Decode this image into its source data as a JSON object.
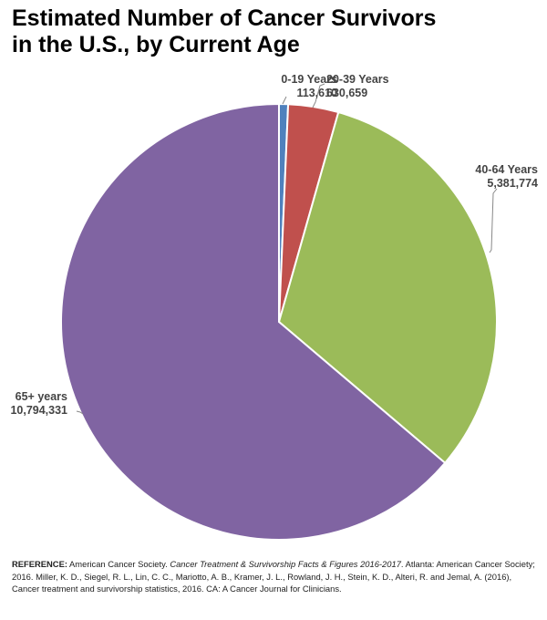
{
  "page": {
    "title_line1": "Estimated Number of Cancer Survivors",
    "title_line2": "in the U.S., by Current Age"
  },
  "chart_data": {
    "type": "pie",
    "title": "Estimated Number of Cancer Survivors in the U.S., by Current Age",
    "slices": [
      {
        "label": "0-19 Years",
        "value": 113610,
        "value_label": "113,610",
        "color": "#4f81bd"
      },
      {
        "label": "20-39 Years",
        "value": 630659,
        "value_label": "630,659",
        "color": "#c0504d"
      },
      {
        "label": "40-64 Years",
        "value": 5381774,
        "value_label": "5,381,774",
        "color": "#9bbb59"
      },
      {
        "label": "65+ years",
        "value": 10794331,
        "value_label": "10,794,331",
        "color": "#8064a2"
      }
    ]
  },
  "reference": {
    "label": "REFERENCE:",
    "part1": " American Cancer Society. ",
    "italic": "Cancer Treatment & Survivorship Facts & Figures 2016-2017",
    "part2": ". Atlanta: American Cancer Society; 2016. Miller, K. D., Siegel, R. L., Lin, C. C., Mariotto, A. B., Kramer, J. L., Rowland, J. H., Stein, K. D., Alteri, R. and Jemal, A. (2016), Cancer treatment and survivorship statistics, 2016. CA: A Cancer Journal for Clinicians."
  }
}
